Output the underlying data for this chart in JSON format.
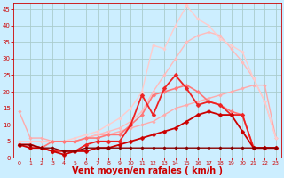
{
  "background_color": "#cceeff",
  "grid_color": "#aacccc",
  "xlabel": "Vent moyen/en rafales ( km/h )",
  "xlabel_color": "#cc0000",
  "xlabel_fontsize": 7,
  "tick_color": "#cc0000",
  "tick_fontsize": 5,
  "xlim": [
    -0.5,
    23.5
  ],
  "ylim": [
    0,
    47
  ],
  "yticks": [
    0,
    5,
    10,
    15,
    20,
    25,
    30,
    35,
    40,
    45
  ],
  "xticks": [
    0,
    1,
    2,
    3,
    4,
    5,
    6,
    7,
    8,
    9,
    10,
    11,
    12,
    13,
    14,
    15,
    16,
    17,
    18,
    19,
    20,
    21,
    22,
    23
  ],
  "series": [
    {
      "x": [
        0,
        1,
        2,
        3,
        4,
        5,
        6,
        7,
        8,
        9,
        10,
        11,
        12,
        13,
        14,
        15,
        16,
        17,
        18,
        19,
        20,
        21,
        22,
        23
      ],
      "y": [
        14,
        6,
        6,
        5,
        5,
        5,
        6,
        7,
        7,
        8,
        9,
        10,
        11,
        13,
        15,
        16,
        17,
        18,
        19,
        20,
        21,
        22,
        22,
        6
      ],
      "color": "#ffaaaa",
      "linewidth": 1.0,
      "marker": "D",
      "markersize": 1.8
    },
    {
      "x": [
        0,
        1,
        2,
        3,
        4,
        5,
        6,
        7,
        8,
        9,
        10,
        11,
        12,
        13,
        14,
        15,
        16,
        17,
        18,
        19,
        20,
        21,
        22,
        23
      ],
      "y": [
        5,
        5,
        5,
        5,
        5,
        5,
        6,
        7,
        8,
        9,
        11,
        14,
        20,
        25,
        30,
        35,
        37,
        38,
        37,
        33,
        29,
        24,
        17,
        6
      ],
      "color": "#ffbbbb",
      "linewidth": 1.0,
      "marker": "D",
      "markersize": 1.8
    },
    {
      "x": [
        0,
        1,
        2,
        3,
        4,
        5,
        6,
        7,
        8,
        9,
        10,
        11,
        12,
        13,
        14,
        15,
        16,
        17,
        18,
        19,
        20,
        21,
        22,
        23
      ],
      "y": [
        5,
        5,
        5,
        5,
        5,
        6,
        7,
        8,
        10,
        12,
        15,
        20,
        34,
        33,
        40,
        46,
        42,
        40,
        36,
        34,
        32,
        24,
        17,
        6
      ],
      "color": "#ffcccc",
      "linewidth": 1.0,
      "marker": "D",
      "markersize": 1.8
    },
    {
      "x": [
        0,
        1,
        2,
        3,
        4,
        5,
        6,
        7,
        8,
        9,
        10,
        11,
        12,
        13,
        14,
        15,
        16,
        17,
        18,
        19,
        20,
        21,
        22,
        23
      ],
      "y": [
        4,
        4,
        3,
        5,
        5,
        5,
        6,
        6,
        7,
        7,
        10,
        13,
        19,
        20,
        21,
        22,
        20,
        17,
        16,
        14,
        13,
        3,
        3,
        3
      ],
      "color": "#ff7777",
      "linewidth": 1.2,
      "marker": "D",
      "markersize": 2.2
    },
    {
      "x": [
        0,
        1,
        2,
        3,
        4,
        5,
        6,
        7,
        8,
        9,
        10,
        11,
        12,
        13,
        14,
        15,
        16,
        17,
        18,
        19,
        20,
        21,
        22,
        23
      ],
      "y": [
        4,
        4,
        3,
        2,
        2,
        2,
        4,
        5,
        5,
        5,
        10,
        19,
        13,
        21,
        25,
        21,
        16,
        17,
        16,
        13,
        13,
        3,
        3,
        3
      ],
      "color": "#ee2222",
      "linewidth": 1.3,
      "marker": "D",
      "markersize": 2.5
    },
    {
      "x": [
        0,
        1,
        2,
        3,
        4,
        5,
        6,
        7,
        8,
        9,
        10,
        11,
        12,
        13,
        14,
        15,
        16,
        17,
        18,
        19,
        20,
        21,
        22,
        23
      ],
      "y": [
        4,
        3,
        3,
        2,
        1,
        2,
        2,
        3,
        3,
        4,
        5,
        6,
        7,
        8,
        9,
        11,
        13,
        14,
        13,
        13,
        8,
        3,
        3,
        3
      ],
      "color": "#cc0000",
      "linewidth": 1.3,
      "marker": "D",
      "markersize": 2.5
    },
    {
      "x": [
        0,
        1,
        2,
        3,
        4,
        5,
        6,
        7,
        8,
        9,
        10,
        11,
        12,
        13,
        14,
        15,
        16,
        17,
        18,
        19,
        20,
        21,
        22,
        23
      ],
      "y": [
        4,
        4,
        3,
        3,
        2,
        2,
        3,
        3,
        3,
        3,
        3,
        3,
        3,
        3,
        3,
        3,
        3,
        3,
        3,
        3,
        3,
        3,
        3,
        3
      ],
      "color": "#880000",
      "linewidth": 1.0,
      "marker": "D",
      "markersize": 1.8
    }
  ]
}
